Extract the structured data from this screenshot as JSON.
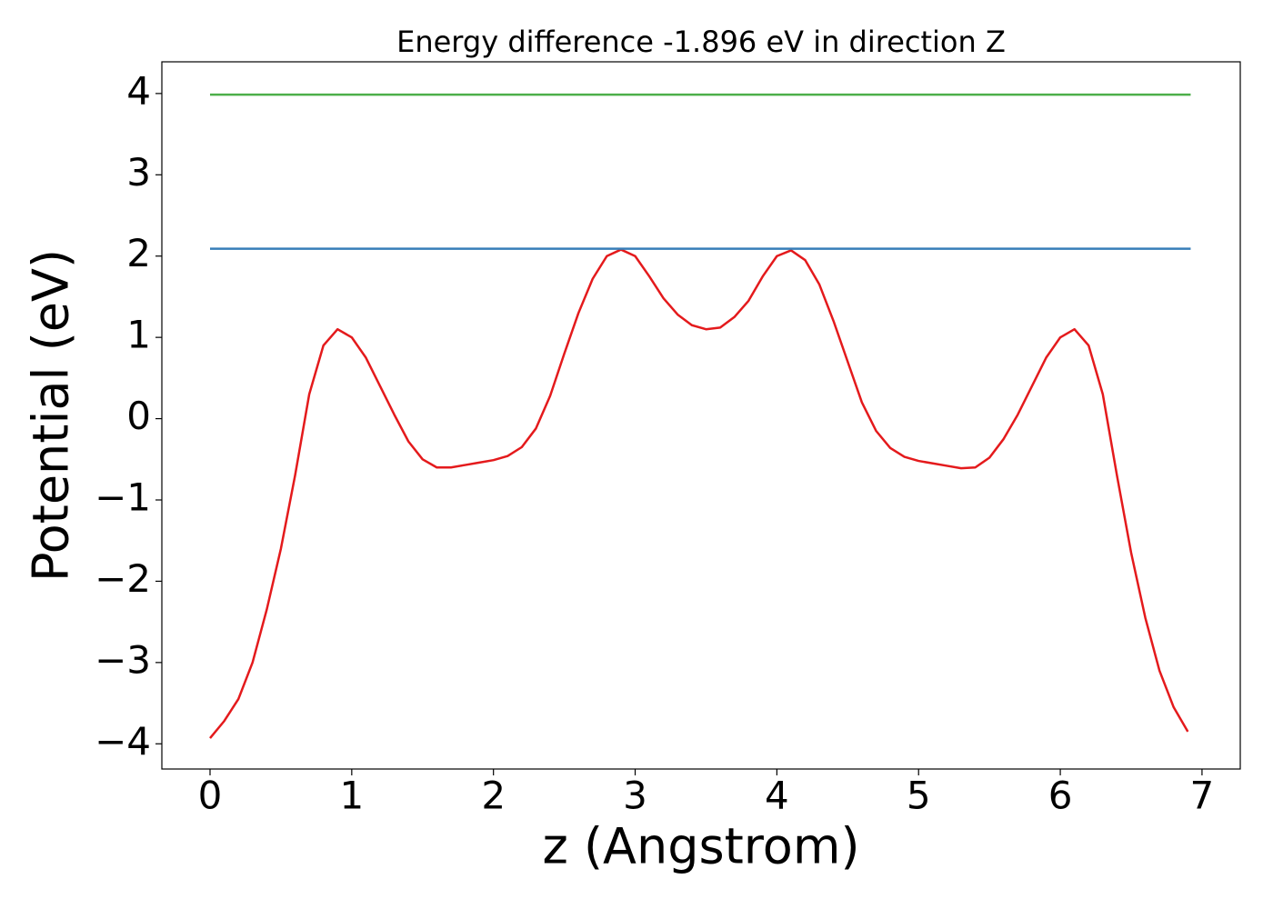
{
  "chart_data": {
    "type": "line",
    "title": "Energy difference -1.896 eV in direction Z",
    "x_label": "z (Angstrom)",
    "y_label": "Potential (eV)",
    "xlim": [
      -0.34,
      7.27
    ],
    "ylim": [
      -4.31,
      4.39
    ],
    "xticks": [
      0,
      1,
      2,
      3,
      4,
      5,
      6,
      7
    ],
    "yticks": [
      {
        "value": -4,
        "label": "−4"
      },
      {
        "value": -3,
        "label": "−3"
      },
      {
        "value": -2,
        "label": "−2"
      },
      {
        "value": -1,
        "label": "−1"
      },
      0,
      1,
      2,
      3,
      4
    ],
    "series": [
      {
        "color": "#e41a1c",
        "x": [
          0,
          0.1,
          0.2,
          0.3,
          0.4,
          0.5,
          0.6,
          0.7,
          0.8,
          0.9,
          1.0,
          1.1,
          1.2,
          1.3,
          1.4,
          1.5,
          1.6,
          1.7,
          1.8,
          1.9,
          2.0,
          2.1,
          2.2,
          2.3,
          2.4,
          2.5,
          2.6,
          2.7,
          2.8,
          2.9,
          3.0,
          3.1,
          3.2,
          3.3,
          3.4,
          3.5,
          3.6,
          3.7,
          3.8,
          3.9,
          4.0,
          4.1,
          4.2,
          4.3,
          4.4,
          4.5,
          4.6,
          4.7,
          4.8,
          4.9,
          5.0,
          5.1,
          5.2,
          5.3,
          5.4,
          5.5,
          5.6,
          5.7,
          5.8,
          5.9,
          6.0,
          6.1,
          6.2,
          6.3,
          6.4,
          6.5,
          6.6,
          6.7,
          6.8,
          6.9
        ],
        "values": [
          -3.93,
          -3.72,
          -3.45,
          -3.0,
          -2.35,
          -1.6,
          -0.7,
          0.3,
          0.9,
          1.1,
          1.0,
          0.75,
          0.4,
          0.05,
          -0.28,
          -0.5,
          -0.6,
          -0.6,
          -0.57,
          -0.54,
          -0.51,
          -0.46,
          -0.35,
          -0.12,
          0.28,
          0.8,
          1.3,
          1.72,
          2.0,
          2.08,
          2.0,
          1.75,
          1.48,
          1.28,
          1.15,
          1.1,
          1.12,
          1.25,
          1.45,
          1.75,
          2.0,
          2.07,
          1.95,
          1.65,
          1.2,
          0.7,
          0.2,
          -0.15,
          -0.36,
          -0.47,
          -0.52,
          -0.55,
          -0.58,
          -0.61,
          -0.6,
          -0.48,
          -0.25,
          0.05,
          0.4,
          0.75,
          1.0,
          1.1,
          0.9,
          0.3,
          -0.7,
          -1.65,
          -2.45,
          -3.1,
          -3.55,
          -3.85
        ]
      },
      {
        "color": "#377eb8",
        "x": [
          0,
          6.92
        ],
        "values": [
          2.09,
          2.09
        ]
      },
      {
        "color": "#4daf4a",
        "x": [
          0,
          6.92
        ],
        "values": [
          3.986,
          3.986
        ]
      }
    ]
  }
}
